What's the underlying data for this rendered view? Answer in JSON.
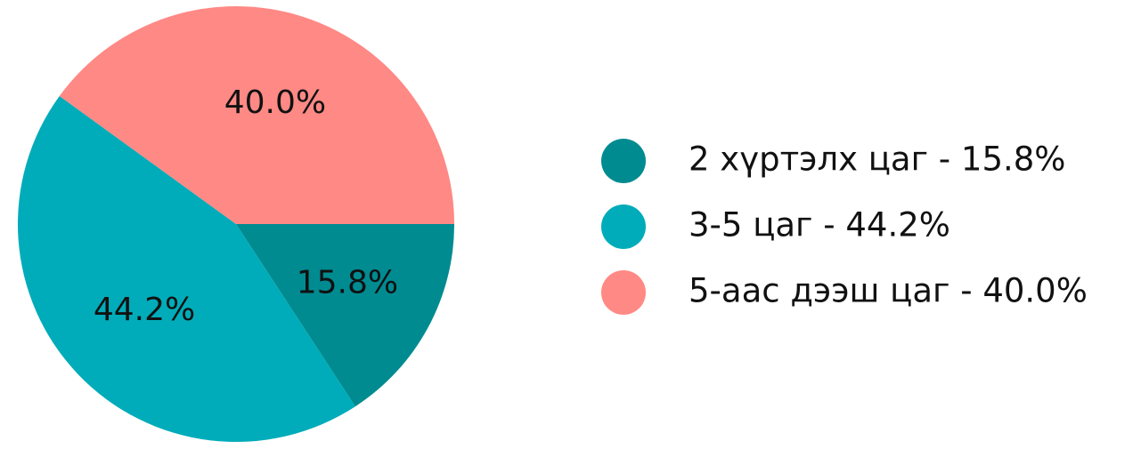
{
  "chart_data": {
    "type": "pie",
    "slices": [
      {
        "label": "2 хүртэлх цаг",
        "value": 15.8,
        "display": "15.8%",
        "legend": "2 хүртэлх цаг - 15.8%",
        "color": "#008b91"
      },
      {
        "label": "3-5 цаг",
        "value": 44.2,
        "display": "44.2%",
        "legend": "3-5 цаг - 44.2%",
        "color": "#00acb9"
      },
      {
        "label": "5-аас дээш цаг",
        "value": 40.0,
        "display": "40.0%",
        "legend": "5-аас дээш цаг - 40.0%",
        "color": "#ff8985"
      }
    ],
    "start_direction": "east",
    "direction": "clockwise",
    "legend_position": "right"
  }
}
